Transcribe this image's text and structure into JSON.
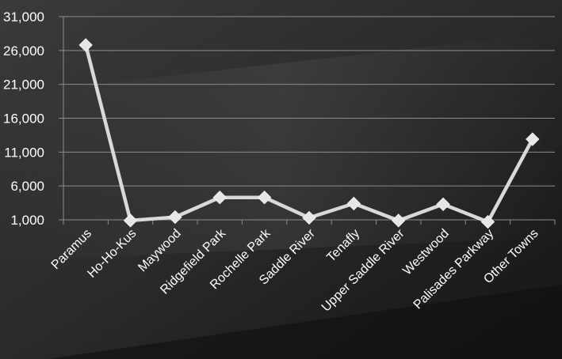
{
  "chart_data": {
    "type": "line",
    "title": "",
    "xlabel": "",
    "ylabel": "",
    "categories": [
      "Paramus",
      "Ho-Ho-Kus",
      "Maywood",
      "Ridgefield Park",
      "Rochelle Park",
      "Saddle River",
      "Tenafly",
      "Upper Saddle River",
      "Westwood",
      "Palisades Parkway",
      "Other Towns"
    ],
    "values": [
      26800,
      900,
      1400,
      4300,
      4300,
      1300,
      3400,
      900,
      3300,
      700,
      12900
    ],
    "ylim": [
      1000,
      31000
    ],
    "yticks": [
      1000,
      6000,
      11000,
      16000,
      21000,
      26000,
      31000
    ],
    "ytick_labels": [
      "1,000",
      "6,000",
      "11,000",
      "16,000",
      "21,000",
      "26,000",
      "31,000"
    ],
    "grid": true,
    "legend": "none",
    "colors": {
      "line": "#d9d9d9",
      "marker": "#e6e6e6",
      "grid": "#8c8c8c",
      "text": "#ffffff",
      "background": "#1e1e1e"
    }
  }
}
